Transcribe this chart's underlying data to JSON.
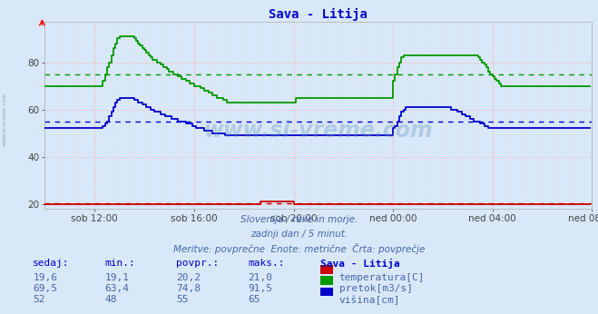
{
  "title": "Sava - Litija",
  "bg_color": "#d8e8f8",
  "plot_bg_color": "#d8e8f8",
  "xlim_pts": [
    0,
    264
  ],
  "ylim": [
    18,
    97
  ],
  "yticks": [
    20,
    40,
    60,
    80
  ],
  "xtick_labels": [
    "sob 12:00",
    "sob 16:00",
    "sob 20:00",
    "ned 00:00",
    "ned 04:00",
    "ned 08:00"
  ],
  "xtick_positions": [
    24,
    72,
    120,
    168,
    216,
    264
  ],
  "avg_temp": 20.2,
  "avg_pretok": 74.8,
  "avg_visina": 55,
  "temp_color": "#cc0000",
  "pretok_color": "#009900",
  "visina_color": "#0000cc",
  "watermark": "www.si-vreme.com",
  "watermark_color": "#5588bb",
  "subtitle1": "Slovenija / reke in morje.",
  "subtitle2": "zadnji dan / 5 minut.",
  "subtitle3": "Meritve: povprečne  Enote: metrične  Črta: povprečje",
  "table_headers": [
    "sedaj:",
    "min.:",
    "povpr.:",
    "maks.:",
    "Sava - Litija"
  ],
  "table_data": [
    [
      "19,6",
      "19,1",
      "20,2",
      "21,0",
      "temperatura[C]",
      "#cc0000"
    ],
    [
      "69,5",
      "63,4",
      "74,8",
      "91,5",
      "pretok[m3/s]",
      "#009900"
    ],
    [
      "52",
      "48",
      "55",
      "65",
      "višina[cm]",
      "#0000cc"
    ]
  ],
  "left_label": "www.si-vreme.com",
  "temp_data": [
    20,
    20,
    20,
    20,
    20,
    20,
    20,
    20,
    20,
    20,
    20,
    20,
    20,
    20,
    20,
    20,
    20,
    20,
    20,
    20,
    20,
    20,
    20,
    20,
    20,
    20,
    20,
    20,
    20,
    20,
    20,
    20,
    20,
    20,
    20,
    20,
    20,
    20,
    20,
    20,
    20,
    20,
    20,
    20,
    20,
    20,
    20,
    20,
    20,
    20,
    20,
    20,
    20,
    20,
    20,
    20,
    20,
    20,
    20,
    20,
    20,
    20,
    20,
    20,
    20,
    20,
    20,
    20,
    20,
    20,
    20,
    20,
    20,
    20,
    20,
    20,
    20,
    20,
    20,
    20,
    20,
    20,
    20,
    20,
    20,
    20,
    20,
    20,
    20,
    20,
    20,
    20,
    20,
    20,
    20,
    20,
    20,
    20,
    20,
    20,
    20,
    20,
    20,
    20,
    21,
    21,
    21,
    21,
    21,
    21,
    21,
    21,
    21,
    21,
    21,
    21,
    21,
    21,
    21,
    21,
    20,
    20,
    20,
    20,
    20,
    20,
    20,
    20,
    20,
    20,
    20,
    20,
    20,
    20,
    20,
    20,
    20,
    20,
    20,
    20,
    20,
    20,
    20,
    20,
    20,
    20,
    20,
    20,
    20,
    20,
    20,
    20,
    20,
    20,
    20,
    20,
    20,
    20,
    20,
    20,
    20,
    20,
    20,
    20,
    20,
    20,
    20,
    20,
    20,
    20,
    20,
    20,
    20,
    20,
    20,
    20,
    20,
    20,
    20,
    20,
    20,
    20,
    20,
    20,
    20,
    20,
    20,
    20,
    20,
    20,
    20,
    20,
    20,
    20,
    20,
    20,
    20,
    20,
    20,
    20,
    20,
    20,
    20,
    20,
    20,
    20,
    20,
    20,
    20,
    20,
    20,
    20,
    20,
    20,
    20,
    20,
    20,
    20,
    20,
    20,
    20,
    20,
    20,
    20,
    20,
    20,
    20,
    20,
    20,
    20,
    20,
    20,
    20,
    20,
    20,
    20,
    20,
    20,
    20,
    20,
    20,
    20,
    20,
    20,
    20,
    20,
    20,
    20,
    20,
    20,
    20,
    20,
    20,
    20,
    20,
    20,
    20,
    20,
    20,
    20,
    20,
    20,
    20,
    20
  ],
  "pretok_data": [
    70,
    70,
    70,
    70,
    70,
    70,
    70,
    70,
    70,
    70,
    70,
    70,
    70,
    70,
    70,
    70,
    70,
    70,
    70,
    70,
    70,
    70,
    70,
    70,
    70,
    70,
    70,
    70,
    72,
    75,
    78,
    80,
    83,
    86,
    88,
    90,
    91,
    91,
    91,
    91,
    91,
    91,
    91,
    90,
    89,
    88,
    87,
    86,
    85,
    84,
    83,
    82,
    81,
    81,
    80,
    80,
    79,
    78,
    78,
    77,
    76,
    76,
    75,
    75,
    74,
    74,
    73,
    73,
    72,
    72,
    71,
    71,
    70,
    70,
    70,
    69,
    69,
    68,
    68,
    67,
    67,
    66,
    66,
    65,
    65,
    65,
    64,
    64,
    63,
    63,
    63,
    63,
    63,
    63,
    63,
    63,
    63,
    63,
    63,
    63,
    63,
    63,
    63,
    63,
    63,
    63,
    63,
    63,
    63,
    63,
    63,
    63,
    63,
    63,
    63,
    63,
    63,
    63,
    63,
    63,
    63,
    65,
    65,
    65,
    65,
    65,
    65,
    65,
    65,
    65,
    65,
    65,
    65,
    65,
    65,
    65,
    65,
    65,
    65,
    65,
    65,
    65,
    65,
    65,
    65,
    65,
    65,
    65,
    65,
    65,
    65,
    65,
    65,
    65,
    65,
    65,
    65,
    65,
    65,
    65,
    65,
    65,
    65,
    65,
    65,
    65,
    65,
    65,
    72,
    75,
    78,
    80,
    82,
    83,
    83,
    83,
    83,
    83,
    83,
    83,
    83,
    83,
    83,
    83,
    83,
    83,
    83,
    83,
    83,
    83,
    83,
    83,
    83,
    83,
    83,
    83,
    83,
    83,
    83,
    83,
    83,
    83,
    83,
    83,
    83,
    83,
    83,
    83,
    83,
    82,
    81,
    80,
    79,
    78,
    76,
    75,
    74,
    73,
    72,
    71,
    70,
    70,
    70,
    70,
    70,
    70,
    70,
    70,
    70,
    70,
    70,
    70,
    70,
    70,
    70,
    70,
    70,
    70,
    70,
    70,
    70,
    70,
    70,
    70,
    70,
    70,
    70,
    70,
    70,
    70,
    70,
    70,
    70,
    70,
    70,
    70,
    70,
    70,
    70,
    70,
    70,
    70,
    70,
    70
  ],
  "visina_data": [
    52,
    52,
    52,
    52,
    52,
    52,
    52,
    52,
    52,
    52,
    52,
    52,
    52,
    52,
    52,
    52,
    52,
    52,
    52,
    52,
    52,
    52,
    52,
    52,
    52,
    52,
    52,
    52,
    53,
    54,
    55,
    57,
    59,
    61,
    63,
    64,
    65,
    65,
    65,
    65,
    65,
    65,
    65,
    64,
    64,
    63,
    63,
    62,
    62,
    61,
    61,
    60,
    60,
    59,
    59,
    59,
    58,
    58,
    57,
    57,
    57,
    56,
    56,
    56,
    55,
    55,
    55,
    55,
    54,
    54,
    54,
    53,
    53,
    52,
    52,
    52,
    52,
    51,
    51,
    51,
    51,
    50,
    50,
    50,
    50,
    50,
    50,
    49,
    49,
    49,
    49,
    49,
    49,
    49,
    49,
    49,
    49,
    49,
    49,
    49,
    49,
    49,
    49,
    49,
    49,
    49,
    49,
    49,
    49,
    49,
    49,
    49,
    49,
    49,
    49,
    49,
    49,
    49,
    49,
    49,
    49,
    49,
    49,
    49,
    49,
    49,
    49,
    49,
    49,
    49,
    49,
    49,
    49,
    49,
    49,
    49,
    49,
    49,
    49,
    49,
    49,
    49,
    49,
    49,
    49,
    49,
    49,
    49,
    49,
    49,
    49,
    49,
    49,
    49,
    49,
    49,
    49,
    49,
    49,
    49,
    49,
    49,
    49,
    49,
    49,
    49,
    49,
    49,
    52,
    53,
    55,
    57,
    59,
    60,
    61,
    61,
    61,
    61,
    61,
    61,
    61,
    61,
    61,
    61,
    61,
    61,
    61,
    61,
    61,
    61,
    61,
    61,
    61,
    61,
    61,
    61,
    60,
    60,
    60,
    59,
    59,
    58,
    58,
    57,
    57,
    56,
    56,
    55,
    55,
    55,
    54,
    54,
    53,
    53,
    52,
    52,
    52,
    52,
    52,
    52,
    52,
    52,
    52,
    52,
    52,
    52,
    52,
    52,
    52,
    52,
    52,
    52,
    52,
    52,
    52,
    52,
    52,
    52,
    52,
    52,
    52,
    52,
    52,
    52,
    52,
    52,
    52,
    52,
    52,
    52,
    52,
    52,
    52,
    52,
    52,
    52,
    52,
    52,
    52,
    52,
    52,
    52,
    52,
    52
  ]
}
